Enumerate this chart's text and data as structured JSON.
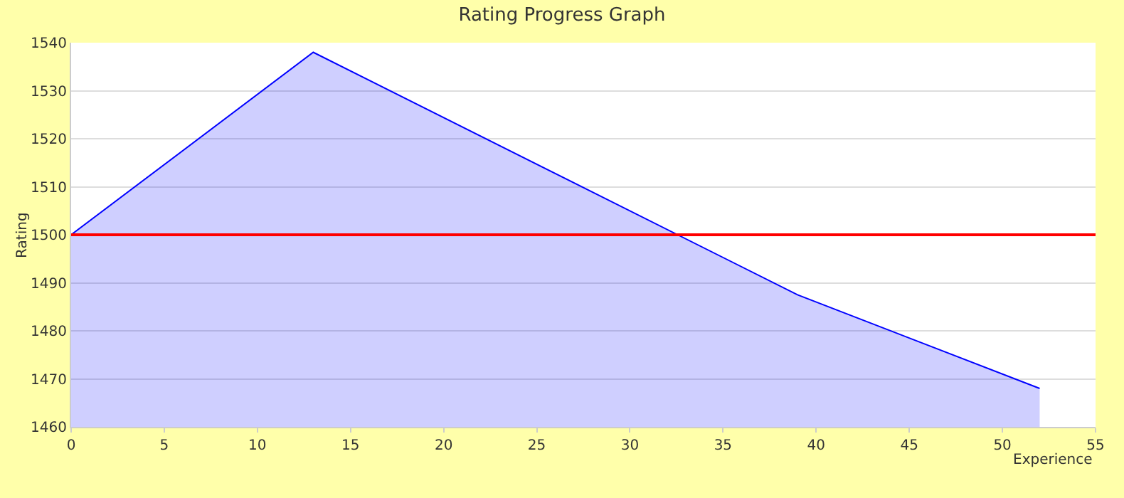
{
  "chart_data": {
    "type": "area",
    "title": "Rating Progress Graph",
    "xlabel": "Experience",
    "ylabel": "Rating",
    "x": [
      0,
      13,
      39,
      52
    ],
    "series": [
      {
        "color": "#0000ff",
        "values": [
          1500,
          1538,
          1487.5,
          1468
        ]
      }
    ],
    "xlim": [
      0,
      55
    ],
    "xticks": [
      0,
      5,
      10,
      15,
      20,
      25,
      30,
      35,
      40,
      45,
      50,
      55
    ],
    "ylim": [
      1460,
      1540
    ],
    "yticks": [
      1460,
      1470,
      1480,
      1490,
      1500,
      1510,
      1520,
      1530,
      1540
    ],
    "ref_lines": [
      {
        "axis": "y",
        "value": 1500,
        "color": "#ff0000"
      }
    ],
    "grid": "y"
  }
}
